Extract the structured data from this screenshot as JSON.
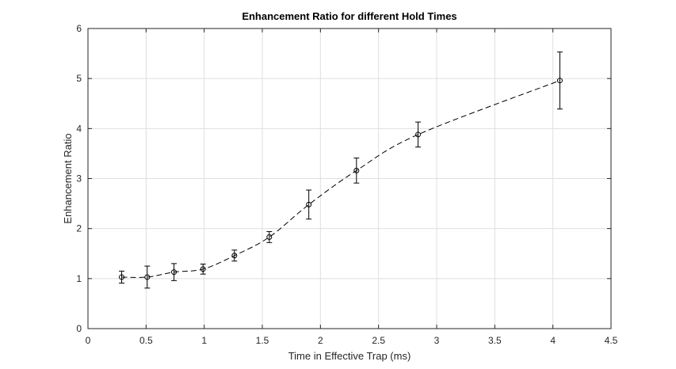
{
  "chart_data": {
    "type": "line",
    "title": "Enhancement Ratio for different Hold Times",
    "xlabel": "Time in Effective Trap (ms)",
    "ylabel": "Enhancement Ratio",
    "xlim": [
      0,
      4.5
    ],
    "ylim": [
      0,
      6
    ],
    "xticks": [
      "0",
      "0.5",
      "1",
      "1.5",
      "2",
      "2.5",
      "3",
      "3.5",
      "4",
      "4.5"
    ],
    "yticks": [
      "0",
      "1",
      "2",
      "3",
      "4",
      "5",
      "6"
    ],
    "grid": true,
    "line_style": "dashed",
    "marker": "circle",
    "series_color": "#000000",
    "points": [
      {
        "x": 0.29,
        "y": 1.03,
        "err": 0.12
      },
      {
        "x": 0.51,
        "y": 1.03,
        "err": 0.22
      },
      {
        "x": 0.74,
        "y": 1.13,
        "err": 0.17
      },
      {
        "x": 0.99,
        "y": 1.19,
        "err": 0.1
      },
      {
        "x": 1.26,
        "y": 1.46,
        "err": 0.11
      },
      {
        "x": 1.56,
        "y": 1.83,
        "err": 0.11
      },
      {
        "x": 1.9,
        "y": 2.48,
        "err": 0.29
      },
      {
        "x": 2.31,
        "y": 3.16,
        "err": 0.25
      },
      {
        "x": 2.84,
        "y": 3.88,
        "err": 0.25
      },
      {
        "x": 4.06,
        "y": 4.96,
        "err": 0.57
      }
    ]
  }
}
